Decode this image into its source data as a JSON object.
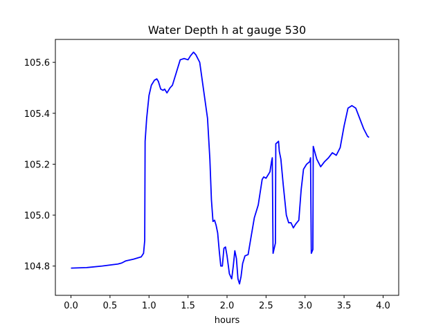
{
  "chart_data": {
    "type": "line",
    "title": "Water Depth h at gauge 530",
    "xlabel": "hours",
    "ylabel": "",
    "xlim": [
      -0.2,
      4.2
    ],
    "ylim": [
      104.685,
      105.69
    ],
    "xticks": [
      0.0,
      0.5,
      1.0,
      1.5,
      2.0,
      2.5,
      3.0,
      3.5,
      4.0
    ],
    "xtick_labels": [
      "0.0",
      "0.5",
      "1.0",
      "1.5",
      "2.0",
      "2.5",
      "3.0",
      "3.5",
      "4.0"
    ],
    "yticks": [
      104.8,
      105.0,
      105.2,
      105.4,
      105.6
    ],
    "ytick_labels": [
      "104.8",
      "105.0",
      "105.2",
      "105.4",
      "105.6"
    ],
    "grid": false,
    "series": [
      {
        "color": "#0000ff",
        "points": [
          [
            0.0,
            104.792
          ],
          [
            0.2,
            104.794
          ],
          [
            0.4,
            104.8
          ],
          [
            0.6,
            104.808
          ],
          [
            0.65,
            104.812
          ],
          [
            0.7,
            104.82
          ],
          [
            0.8,
            104.827
          ],
          [
            0.9,
            104.836
          ],
          [
            0.93,
            104.85
          ],
          [
            0.945,
            104.9
          ],
          [
            0.95,
            105.29
          ],
          [
            0.97,
            105.38
          ],
          [
            1.0,
            105.47
          ],
          [
            1.03,
            105.51
          ],
          [
            1.07,
            105.53
          ],
          [
            1.1,
            105.535
          ],
          [
            1.12,
            105.525
          ],
          [
            1.15,
            105.495
          ],
          [
            1.18,
            105.49
          ],
          [
            1.2,
            105.495
          ],
          [
            1.23,
            105.48
          ],
          [
            1.27,
            105.5
          ],
          [
            1.3,
            105.51
          ],
          [
            1.35,
            105.56
          ],
          [
            1.4,
            105.61
          ],
          [
            1.45,
            105.615
          ],
          [
            1.5,
            105.61
          ],
          [
            1.53,
            105.625
          ],
          [
            1.57,
            105.64
          ],
          [
            1.6,
            105.63
          ],
          [
            1.65,
            105.6
          ],
          [
            1.7,
            105.49
          ],
          [
            1.75,
            105.38
          ],
          [
            1.78,
            105.22
          ],
          [
            1.8,
            105.06
          ],
          [
            1.82,
            104.975
          ],
          [
            1.84,
            104.98
          ],
          [
            1.86,
            104.96
          ],
          [
            1.88,
            104.93
          ],
          [
            1.9,
            104.86
          ],
          [
            1.92,
            104.8
          ],
          [
            1.94,
            104.8
          ],
          [
            1.96,
            104.87
          ],
          [
            1.98,
            104.875
          ],
          [
            2.0,
            104.84
          ],
          [
            2.03,
            104.77
          ],
          [
            2.06,
            104.75
          ],
          [
            2.08,
            104.8
          ],
          [
            2.1,
            104.86
          ],
          [
            2.12,
            104.83
          ],
          [
            2.14,
            104.75
          ],
          [
            2.16,
            104.73
          ],
          [
            2.18,
            104.76
          ],
          [
            2.2,
            104.81
          ],
          [
            2.23,
            104.84
          ],
          [
            2.27,
            104.845
          ],
          [
            2.3,
            104.9
          ],
          [
            2.35,
            104.99
          ],
          [
            2.4,
            105.04
          ],
          [
            2.45,
            105.14
          ],
          [
            2.47,
            105.15
          ],
          [
            2.5,
            105.145
          ],
          [
            2.55,
            105.17
          ],
          [
            2.57,
            105.21
          ],
          [
            2.58,
            105.225
          ],
          [
            2.59,
            104.85
          ],
          [
            2.62,
            104.89
          ],
          [
            2.625,
            105.28
          ],
          [
            2.66,
            105.29
          ],
          [
            2.67,
            105.25
          ],
          [
            2.69,
            105.22
          ],
          [
            2.72,
            105.12
          ],
          [
            2.76,
            105.0
          ],
          [
            2.79,
            104.97
          ],
          [
            2.82,
            104.97
          ],
          [
            2.85,
            104.95
          ],
          [
            2.88,
            104.965
          ],
          [
            2.92,
            104.98
          ],
          [
            2.95,
            105.1
          ],
          [
            2.98,
            105.18
          ],
          [
            3.02,
            105.2
          ],
          [
            3.06,
            105.21
          ],
          [
            3.07,
            105.225
          ],
          [
            3.08,
            104.85
          ],
          [
            3.1,
            104.865
          ],
          [
            3.105,
            105.27
          ],
          [
            3.15,
            105.22
          ],
          [
            3.2,
            105.19
          ],
          [
            3.25,
            105.21
          ],
          [
            3.3,
            105.225
          ],
          [
            3.35,
            105.245
          ],
          [
            3.4,
            105.235
          ],
          [
            3.45,
            105.265
          ],
          [
            3.5,
            105.35
          ],
          [
            3.55,
            105.42
          ],
          [
            3.6,
            105.43
          ],
          [
            3.65,
            105.42
          ],
          [
            3.7,
            105.38
          ],
          [
            3.75,
            105.34
          ],
          [
            3.8,
            105.31
          ],
          [
            3.82,
            105.305
          ]
        ]
      }
    ]
  }
}
